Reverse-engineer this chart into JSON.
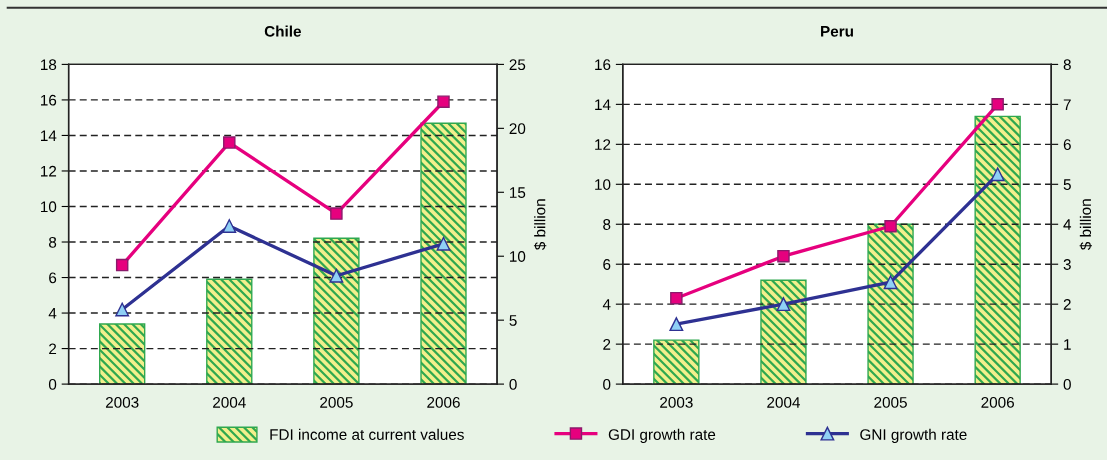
{
  "chart_data": [
    {
      "type": "bar",
      "title": "Chile",
      "categories": [
        "2003",
        "2004",
        "2005",
        "2006"
      ],
      "y2label": "$ billion",
      "ylim": [
        0,
        18
      ],
      "yticks": [
        0,
        2,
        4,
        6,
        8,
        10,
        12,
        14,
        16,
        18
      ],
      "y2lim": [
        0,
        25
      ],
      "y2ticks": [
        0,
        5,
        10,
        15,
        20,
        25
      ],
      "grid": "y",
      "legend": "bottom",
      "series": [
        {
          "name": "FDI income at current values",
          "axis": "y2",
          "color": "#2fa84f",
          "values": [
            4.7,
            8.2,
            11.4,
            20.4
          ]
        },
        {
          "name": "GDI growth rate",
          "type": "line",
          "marker": "square",
          "color": "#e6007e",
          "values": [
            6.7,
            13.6,
            9.6,
            15.9
          ]
        },
        {
          "name": "GNI growth rate",
          "type": "line",
          "marker": "triangle",
          "color": "#2e3192",
          "values": [
            4.2,
            8.9,
            6.1,
            7.9
          ]
        }
      ]
    },
    {
      "type": "bar",
      "title": "Peru",
      "categories": [
        "2003",
        "2004",
        "2005",
        "2006"
      ],
      "y2label": "$ billion",
      "ylim": [
        0,
        16
      ],
      "yticks": [
        0,
        2,
        4,
        6,
        8,
        10,
        12,
        14,
        16
      ],
      "y2lim": [
        0,
        8
      ],
      "y2ticks": [
        0,
        1,
        2,
        3,
        4,
        5,
        6,
        7,
        8
      ],
      "grid": "y",
      "series": [
        {
          "axis": "y2",
          "color": "#2fa84f",
          "values": [
            1.1,
            2.6,
            4.0,
            6.7
          ]
        },
        {
          "type": "line",
          "marker": "square",
          "color": "#e6007e",
          "values": [
            4.3,
            6.4,
            7.9,
            14.0
          ]
        },
        {
          "type": "line",
          "marker": "triangle",
          "color": "#2e3192",
          "values": [
            3.0,
            4.0,
            5.1,
            10.5
          ]
        }
      ]
    }
  ]
}
